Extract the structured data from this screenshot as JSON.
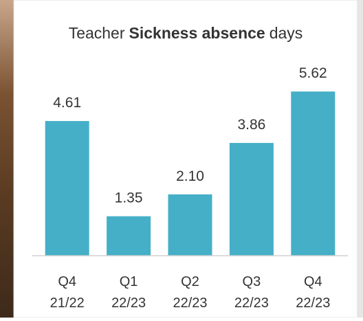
{
  "chart_data": {
    "type": "bar",
    "title_parts": [
      {
        "text": "Teacher"
      },
      {
        "text": "Sickness absence",
        "bold": true
      },
      {
        "text": "days"
      }
    ],
    "categories": [
      [
        "Q4",
        "21/22"
      ],
      [
        "Q1",
        "22/23"
      ],
      [
        "Q2",
        "22/23"
      ],
      [
        "Q3",
        "22/23"
      ],
      [
        "Q4",
        "22/23"
      ]
    ],
    "values": [
      4.61,
      1.35,
      2.1,
      3.86,
      5.62
    ],
    "value_labels": [
      "4.61",
      "1.35",
      "2.10",
      "3.86",
      "5.62"
    ],
    "color": "#45afc7",
    "ylim": [
      0,
      6
    ]
  }
}
